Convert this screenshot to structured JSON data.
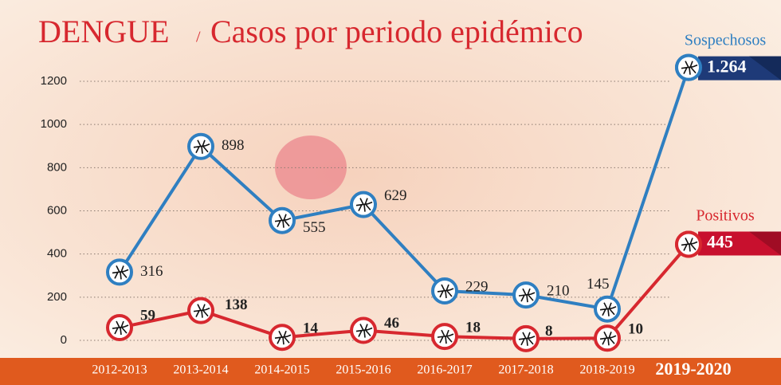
{
  "chart_data": {
    "type": "line",
    "title": "DENGUE",
    "separator": "/",
    "subtitle": "Casos por periodo epidémico",
    "categories": [
      "2012-2013",
      "2013-2014",
      "2014-2015",
      "2015-2016",
      "2016-2017",
      "2017-2018",
      "2018-2019",
      "2019-2020"
    ],
    "series": [
      {
        "name": "Sospechosos",
        "color": "#2f7fc1",
        "values": [
          316,
          898,
          555,
          629,
          229,
          210,
          145,
          1264
        ],
        "value_labels": [
          "316",
          "898",
          "555",
          "629",
          "229",
          "210",
          "145",
          "1.264"
        ]
      },
      {
        "name": "Positivos",
        "color": "#d7282f",
        "values": [
          59,
          138,
          14,
          46,
          18,
          8,
          10,
          445
        ]
      }
    ],
    "ylim": [
      0,
      1200
    ],
    "yticks": [
      0,
      200,
      400,
      600,
      800,
      1000,
      1200
    ],
    "grid": true
  }
}
